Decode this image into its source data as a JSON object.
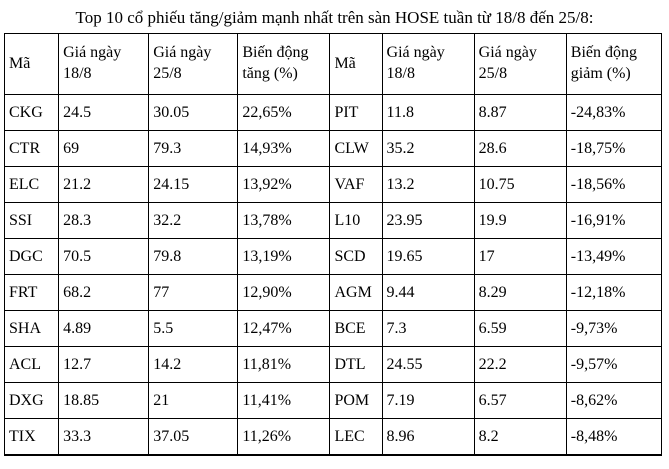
{
  "title": "Top 10 cổ phiếu tăng/giảm mạnh nhất trên sàn HOSE tuần từ 18/8 đến 25/8:",
  "table": {
    "columns": [
      "Mã",
      "Giá ngày 18/8",
      "Giá ngày 25/8",
      "Biến động tăng (%)",
      "Mã",
      "Giá ngày 18/8",
      "Giá ngày 25/8",
      "Biến động giảm (%)"
    ],
    "rows": [
      [
        "CKG",
        "24.5",
        "30.05",
        "22,65%",
        "PIT",
        "11.8",
        "8.87",
        "-24,83%"
      ],
      [
        "CTR",
        "69",
        "79.3",
        "14,93%",
        "CLW",
        "35.2",
        "28.6",
        "-18,75%"
      ],
      [
        "ELC",
        "21.2",
        "24.15",
        "13,92%",
        "VAF",
        "13.2",
        "10.75",
        "-18,56%"
      ],
      [
        "SSI",
        "28.3",
        "32.2",
        "13,78%",
        "L10",
        "23.95",
        "19.9",
        "-16,91%"
      ],
      [
        "DGC",
        "70.5",
        "79.8",
        "13,19%",
        "SCD",
        "19.65",
        "17",
        "-13,49%"
      ],
      [
        "FRT",
        "68.2",
        "77",
        "12,90%",
        "AGM",
        "9.44",
        "8.29",
        "-12,18%"
      ],
      [
        "SHA",
        "4.89",
        "5.5",
        "12,47%",
        "BCE",
        "7.3",
        "6.59",
        "-9,73%"
      ],
      [
        "ACL",
        "12.7",
        "14.2",
        "11,81%",
        "DTL",
        "24.55",
        "22.2",
        "-9,57%"
      ],
      [
        "DXG",
        "18.85",
        "21",
        "11,41%",
        "POM",
        "7.19",
        "6.57",
        "-8,62%"
      ],
      [
        "TIX",
        "33.3",
        "37.05",
        "11,26%",
        "LEC",
        "8.96",
        "8.2",
        "-8,48%"
      ]
    ]
  },
  "colors": {
    "text": "#000000",
    "border": "#000000",
    "background": "#ffffff"
  }
}
